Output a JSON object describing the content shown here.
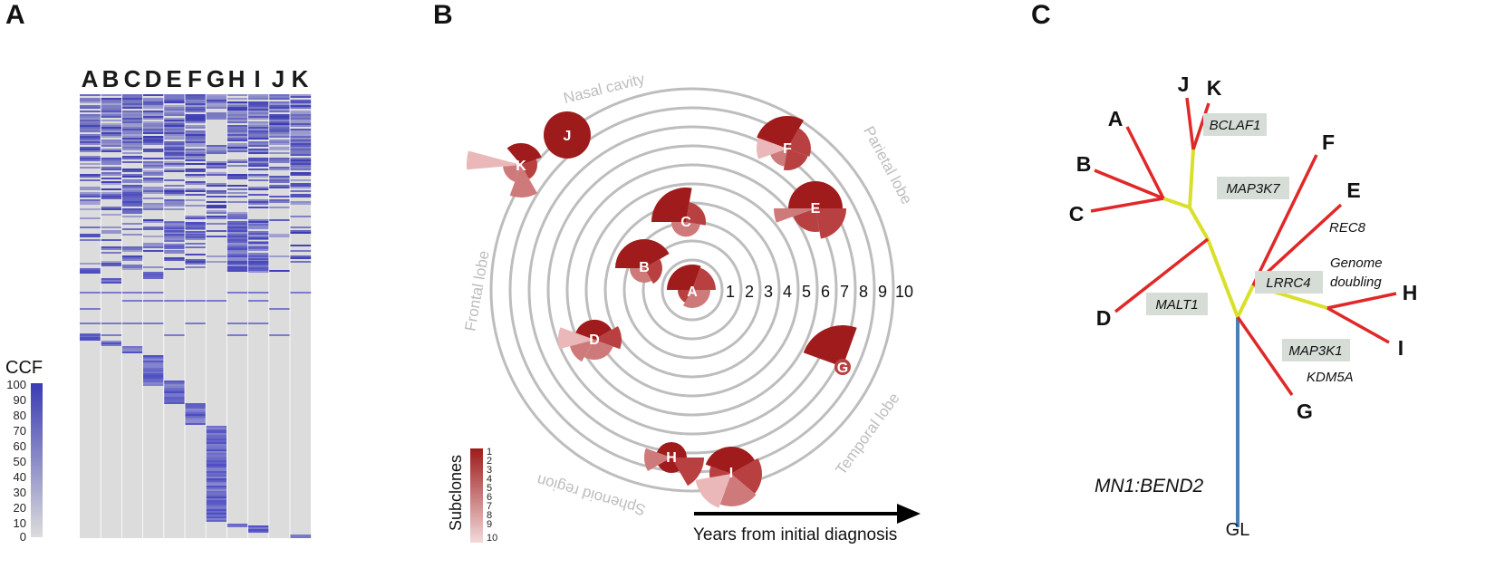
{
  "panels": {
    "a": "A",
    "b": "B",
    "c": "C"
  },
  "heatmap": {
    "samples": [
      "A",
      "B",
      "C",
      "D",
      "E",
      "F",
      "G",
      "H",
      "I",
      "J",
      "K"
    ],
    "legend_title": "CCF",
    "legend_ticks": [
      "100",
      "90",
      "80",
      "70",
      "60",
      "50",
      "40",
      "30",
      "20",
      "10",
      "0"
    ],
    "colors": {
      "high": "#3b3bb4",
      "low": "#dcdcdc"
    }
  },
  "fishplot": {
    "regions": [
      "Nasal cavity",
      "Parietal lobe",
      "Frontal lobe",
      "Temporal lobe",
      "Sphenoid region"
    ],
    "ring_numbers": [
      "1",
      "2",
      "3",
      "4",
      "5",
      "6",
      "7",
      "8",
      "9",
      "10"
    ],
    "clones": [
      "A",
      "B",
      "C",
      "D",
      "E",
      "F",
      "G",
      "H",
      "I",
      "J",
      "K"
    ],
    "legend_title": "Subclones",
    "legend_ticks": [
      "1",
      "2",
      "3",
      "4",
      "5",
      "6",
      "7",
      "8",
      "9",
      "10"
    ],
    "axis_label": "Years from initial diagnosis",
    "colors": {
      "main": "#9e1b1b",
      "ring": "#bdbdbd"
    }
  },
  "tree": {
    "leaves": [
      "A",
      "B",
      "C",
      "D",
      "E",
      "F",
      "G",
      "H",
      "I",
      "J",
      "K"
    ],
    "root": "GL",
    "genes_boxed": [
      "BCLAF1",
      "MAP3K7",
      "LRRC4",
      "MALT1",
      "MAP3K1"
    ],
    "genes_plain": [
      "REC8",
      "KDM5A"
    ],
    "event": [
      "Genome",
      "doubling"
    ],
    "fusion": "MN1:BEND2",
    "colors": {
      "trunk": "#4a7fb5",
      "shared": "#d8e02b",
      "private": "#e02828",
      "box": "#d6dcd6"
    }
  }
}
